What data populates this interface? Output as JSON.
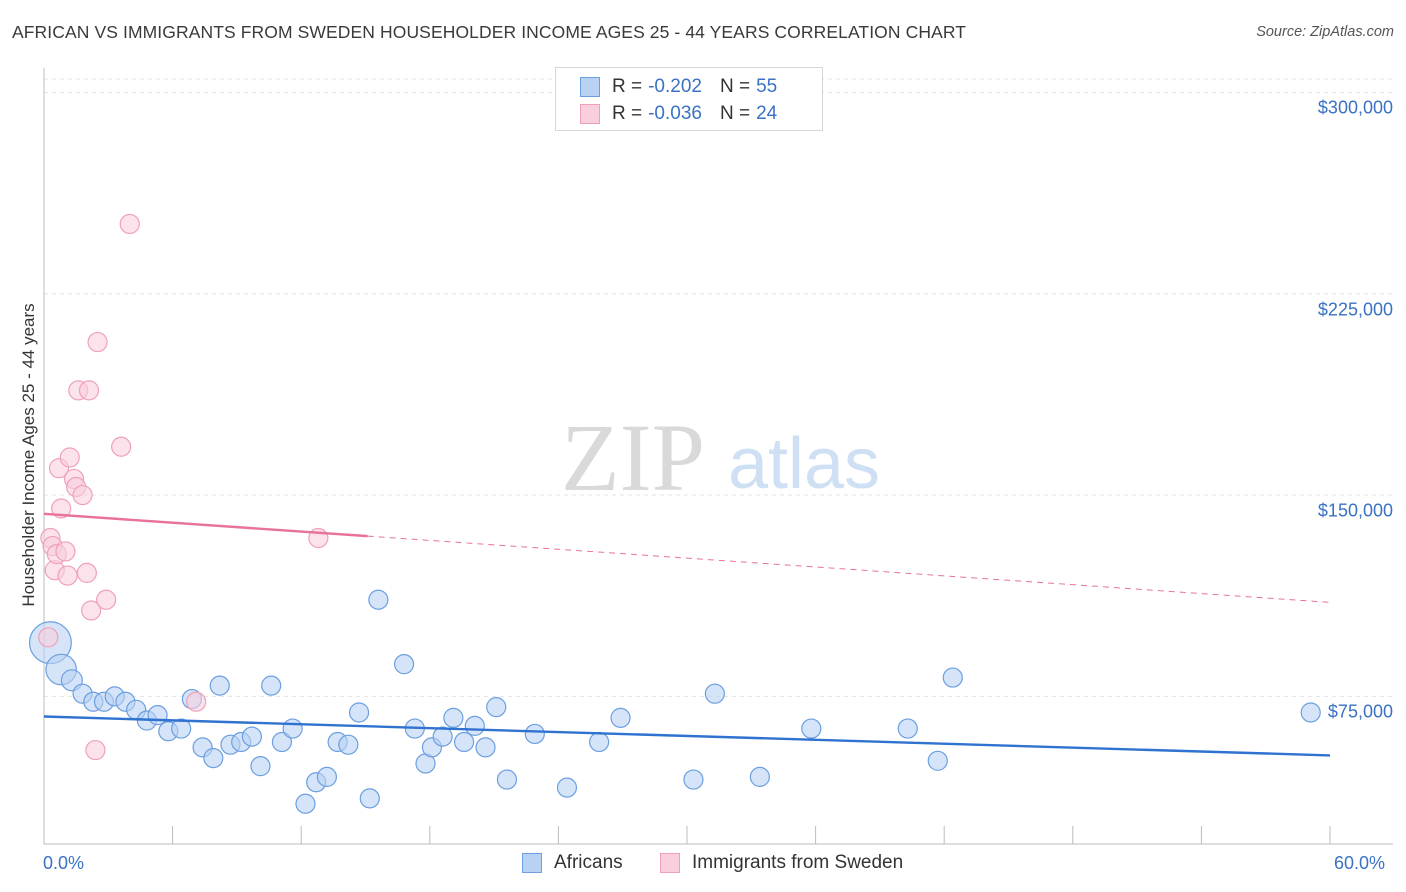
{
  "title": "AFRICAN VS IMMIGRANTS FROM SWEDEN HOUSEHOLDER INCOME AGES 25 - 44 YEARS CORRELATION CHART",
  "source": "Source: ZipAtlas.com",
  "watermark": {
    "zip": "ZIP",
    "atlas": "atlas"
  },
  "chart_data": {
    "type": "scatter",
    "title": "AFRICAN VS IMMIGRANTS FROM SWEDEN HOUSEHOLDER INCOME AGES 25 - 44 YEARS CORRELATION CHART",
    "xlabel": "",
    "ylabel": "Householder Income Ages 25 - 44 years",
    "xlim": [
      0,
      60
    ],
    "ylim": [
      20000,
      305000
    ],
    "x_tick_labels": {
      "min": "0.0%",
      "max": "60.0%"
    },
    "y_ticks": [
      {
        "value": 75000,
        "label": "$75,000"
      },
      {
        "value": 150000,
        "label": "$150,000"
      },
      {
        "value": 225000,
        "label": "$225,000"
      },
      {
        "value": 300000,
        "label": "$300,000"
      }
    ],
    "grid": true,
    "legend_placement": "top-center",
    "series": [
      {
        "name": "Africans",
        "color": "#6b9fe0",
        "fill": "#b9d2f3",
        "line_color": "#2f72cf",
        "stats": {
          "r_label": "R =",
          "r": "-0.202",
          "n_label": "N =",
          "n": "55"
        },
        "trend": {
          "x0": 0,
          "y0": 67500,
          "x1": 60,
          "y1": 53000,
          "dashed_from": null
        },
        "points": [
          [
            0.3,
            95000,
            2.2
          ],
          [
            0.8,
            85000,
            1.6
          ],
          [
            1.3,
            81000,
            1.1
          ],
          [
            1.8,
            76000,
            1
          ],
          [
            2.3,
            73000,
            1
          ],
          [
            2.8,
            73000,
            1
          ],
          [
            3.3,
            75000,
            1
          ],
          [
            3.8,
            73000,
            1
          ],
          [
            4.3,
            70000,
            1
          ],
          [
            4.8,
            66000,
            1
          ],
          [
            5.3,
            68000,
            1
          ],
          [
            5.8,
            62000,
            1
          ],
          [
            6.4,
            63000,
            1
          ],
          [
            6.9,
            74000,
            1
          ],
          [
            7.4,
            56000,
            1
          ],
          [
            7.9,
            52000,
            1
          ],
          [
            8.2,
            79000,
            1
          ],
          [
            8.7,
            57000,
            1
          ],
          [
            9.2,
            58000,
            1
          ],
          [
            9.7,
            60000,
            1
          ],
          [
            10.1,
            49000,
            1
          ],
          [
            10.6,
            79000,
            1
          ],
          [
            11.1,
            58000,
            1
          ],
          [
            11.6,
            63000,
            1
          ],
          [
            12.2,
            35000,
            1
          ],
          [
            12.7,
            43000,
            1
          ],
          [
            13.2,
            45000,
            1
          ],
          [
            13.7,
            58000,
            1
          ],
          [
            14.2,
            57000,
            1
          ],
          [
            14.7,
            69000,
            1
          ],
          [
            15.2,
            37000,
            1
          ],
          [
            15.6,
            111000,
            1
          ],
          [
            16.8,
            87000,
            1
          ],
          [
            17.3,
            63000,
            1
          ],
          [
            17.8,
            50000,
            1
          ],
          [
            18.1,
            56000,
            1
          ],
          [
            18.6,
            60000,
            1
          ],
          [
            19.1,
            67000,
            1
          ],
          [
            19.6,
            58000,
            1
          ],
          [
            20.1,
            64000,
            1
          ],
          [
            20.6,
            56000,
            1
          ],
          [
            21.1,
            71000,
            1
          ],
          [
            21.6,
            44000,
            1
          ],
          [
            22.9,
            61000,
            1
          ],
          [
            24.4,
            41000,
            1
          ],
          [
            25.9,
            58000,
            1
          ],
          [
            26.9,
            67000,
            1
          ],
          [
            30.3,
            44000,
            1
          ],
          [
            31.3,
            76000,
            1
          ],
          [
            33.4,
            45000,
            1
          ],
          [
            35.8,
            63000,
            1
          ],
          [
            40.3,
            63000,
            1
          ],
          [
            41.7,
            51000,
            1
          ],
          [
            42.4,
            82000,
            1
          ],
          [
            59.1,
            69000,
            1
          ]
        ]
      },
      {
        "name": "Immigrants from Sweden",
        "color": "#f0a0bc",
        "fill": "#f9cfdd",
        "line_color": "#e8729a",
        "stats": {
          "r_label": "R =",
          "r": "-0.036",
          "n_label": "N =",
          "n": "24"
        },
        "trend": {
          "x0": 0,
          "y0": 143000,
          "x1": 60,
          "y1": 110000,
          "dashed_from": 15.1
        },
        "points": [
          [
            0.2,
            97000,
            1
          ],
          [
            0.3,
            134000,
            1
          ],
          [
            0.4,
            131000,
            1
          ],
          [
            0.5,
            122000,
            1
          ],
          [
            0.6,
            128000,
            1
          ],
          [
            0.7,
            160000,
            1
          ],
          [
            0.8,
            145000,
            1
          ],
          [
            1.0,
            129000,
            1
          ],
          [
            1.1,
            120000,
            1
          ],
          [
            1.2,
            164000,
            1
          ],
          [
            1.4,
            156000,
            1
          ],
          [
            1.5,
            153000,
            1
          ],
          [
            1.6,
            189000,
            1
          ],
          [
            1.8,
            150000,
            1
          ],
          [
            2.0,
            121000,
            1
          ],
          [
            2.1,
            189000,
            1
          ],
          [
            2.2,
            107000,
            1
          ],
          [
            2.4,
            55000,
            1
          ],
          [
            2.5,
            207000,
            1
          ],
          [
            2.9,
            111000,
            1
          ],
          [
            3.6,
            168000,
            1
          ],
          [
            4.0,
            251000,
            1
          ],
          [
            7.1,
            73000,
            1
          ],
          [
            12.8,
            134000,
            1
          ]
        ]
      }
    ]
  }
}
